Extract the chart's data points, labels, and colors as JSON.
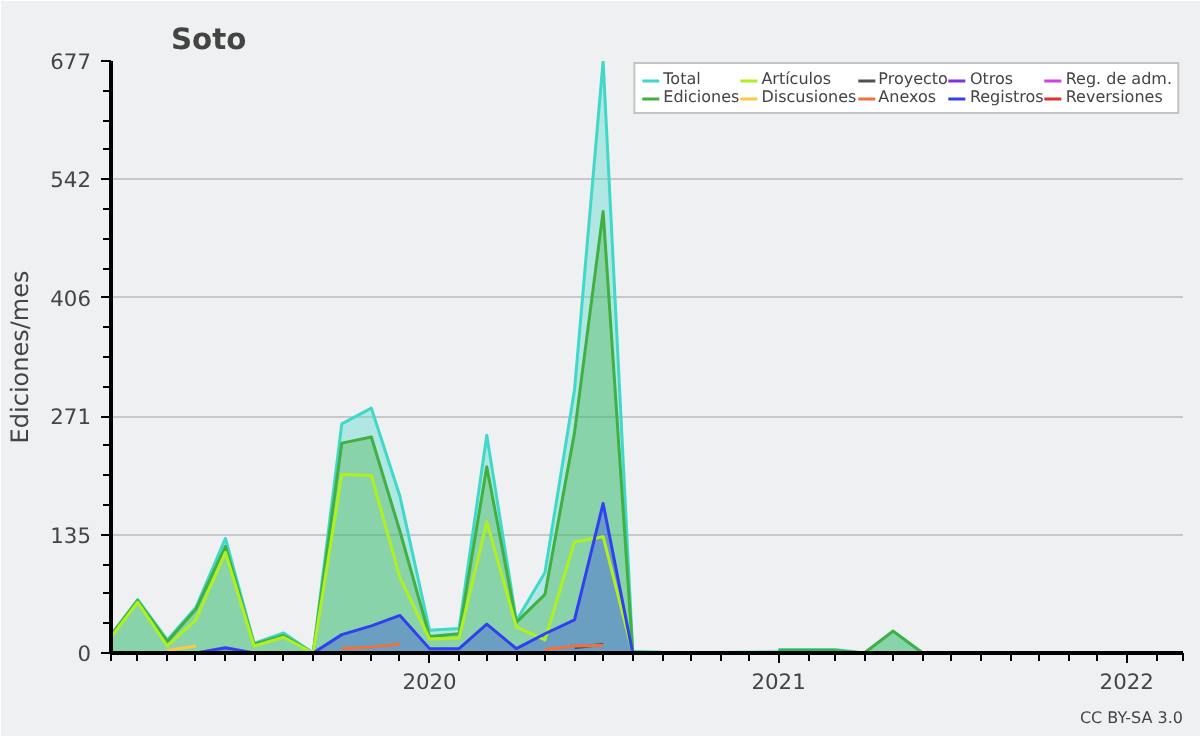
{
  "chart_data": {
    "type": "line",
    "title": "Soto",
    "ylabel": "Ediciones/mes",
    "x": [
      "2019-02",
      "2019-03",
      "2019-04",
      "2019-05",
      "2019-06",
      "2019-07",
      "2019-08",
      "2019-09",
      "2019-10",
      "2019-11",
      "2019-12",
      "2020-01",
      "2020-02",
      "2020-03",
      "2020-04",
      "2020-05",
      "2020-06",
      "2020-07",
      "2020-08",
      "2020-09",
      "2020-10",
      "2020-11",
      "2020-12",
      "2021-01",
      "2021-02",
      "2021-03",
      "2021-04",
      "2021-05",
      "2021-06"
    ],
    "xlim": [
      "2019-02",
      "2022-03"
    ],
    "xticks": [
      {
        "value": "2020-01",
        "label": "2020"
      },
      {
        "value": "2021-01",
        "label": "2021"
      },
      {
        "value": "2022-01",
        "label": "2022"
      }
    ],
    "ylim": [
      0,
      677
    ],
    "yticks": [
      0,
      135,
      271,
      406,
      542,
      677
    ],
    "grid": "y",
    "legend": "top right",
    "series": [
      {
        "name": "Total",
        "type": "area",
        "color": "#40d8c8",
        "values": [
          21,
          61,
          15,
          52,
          131,
          11,
          23,
          0,
          262,
          280,
          179,
          26,
          28,
          249,
          37,
          92,
          301,
          677,
          2,
          1,
          null,
          null,
          null,
          4,
          4,
          4,
          0,
          25,
          0
        ]
      },
      {
        "name": "Ediciones",
        "type": "area",
        "color": "#40b040",
        "values": [
          20,
          60,
          13,
          50,
          122,
          10,
          20,
          0,
          240,
          247,
          139,
          19,
          22,
          213,
          35,
          67,
          252,
          505,
          1,
          0,
          null,
          null,
          null,
          3,
          3,
          3,
          0,
          25,
          0
        ]
      },
      {
        "name": "Artículos",
        "color": "#b0f020",
        "values": [
          18,
          58,
          8,
          38,
          115,
          8,
          18,
          0,
          204,
          203,
          86,
          16,
          17,
          150,
          30,
          15,
          127,
          133,
          0,
          0,
          null,
          null,
          null,
          null,
          null,
          null,
          null,
          null,
          null
        ]
      },
      {
        "name": "Discusiones",
        "color": "#ffc840",
        "values": [
          null,
          null,
          3,
          8,
          null,
          null,
          null,
          null,
          null,
          null,
          null,
          null,
          null,
          null,
          null,
          null,
          null,
          null,
          null,
          null,
          null,
          null,
          null,
          null,
          null,
          null,
          null,
          null,
          null
        ]
      },
      {
        "name": "Proyecto",
        "color": "#505050",
        "values": [
          null,
          null,
          null,
          null,
          null,
          null,
          null,
          null,
          null,
          null,
          null,
          null,
          null,
          null,
          null,
          null,
          6,
          10,
          null,
          null,
          null,
          null,
          null,
          null,
          null,
          null,
          null,
          null,
          null
        ]
      },
      {
        "name": "Anexos",
        "color": "#f07040",
        "values": [
          null,
          null,
          null,
          null,
          null,
          null,
          null,
          null,
          5,
          7,
          10,
          null,
          null,
          null,
          null,
          4,
          8,
          9,
          null,
          null,
          null,
          null,
          null,
          null,
          null,
          null,
          null,
          null,
          null
        ]
      },
      {
        "name": "Otros",
        "color": "#8030e0",
        "values": [
          null,
          null,
          null,
          null,
          null,
          null,
          null,
          null,
          null,
          null,
          null,
          null,
          null,
          null,
          null,
          null,
          null,
          null,
          null,
          null,
          null,
          null,
          null,
          null,
          null,
          null,
          null,
          null,
          null
        ]
      },
      {
        "name": "Registros",
        "type": "area",
        "color": "#3040f0",
        "values": [
          0,
          0,
          0,
          0,
          6,
          0,
          0,
          0,
          21,
          31,
          43,
          5,
          5,
          33,
          5,
          22,
          38,
          171,
          0,
          0,
          null,
          null,
          null,
          0,
          0,
          0,
          0,
          0,
          0
        ]
      },
      {
        "name": "Reg. de adm.",
        "color": "#d040e0",
        "values": [
          null,
          null,
          null,
          null,
          null,
          null,
          null,
          null,
          null,
          null,
          null,
          null,
          null,
          null,
          null,
          null,
          null,
          null,
          null,
          null,
          null,
          null,
          null,
          null,
          null,
          null,
          null,
          null,
          null
        ]
      },
      {
        "name": "Reversiones",
        "color": "#e03030",
        "values": [
          null,
          null,
          null,
          null,
          null,
          null,
          null,
          null,
          null,
          null,
          null,
          null,
          null,
          null,
          null,
          null,
          null,
          null,
          null,
          null,
          null,
          null,
          null,
          null,
          null,
          null,
          null,
          null,
          null
        ]
      }
    ],
    "annotations": [
      "CC BY-SA 3.0"
    ]
  }
}
